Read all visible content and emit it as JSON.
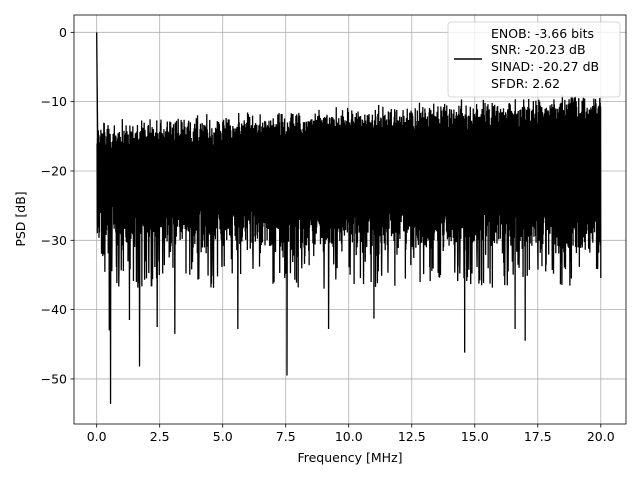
{
  "chart_data": {
    "type": "line",
    "title": "",
    "xlabel": "Frequency [MHz]",
    "ylabel": "PSD [dB]",
    "xlim": [
      -0.9,
      21.0
    ],
    "ylim": [
      -56.5,
      2.5
    ],
    "xticks": [
      0.0,
      2.5,
      5.0,
      7.5,
      10.0,
      12.5,
      15.0,
      17.5,
      20.0
    ],
    "xtick_labels": [
      "0.0",
      "2.5",
      "5.0",
      "7.5",
      "10.0",
      "12.5",
      "15.0",
      "17.5",
      "20.0"
    ],
    "yticks": [
      0,
      -10,
      -20,
      -30,
      -40,
      -50
    ],
    "ytick_labels": [
      "0",
      "−10",
      "−20",
      "−30",
      "−40",
      "−50"
    ],
    "grid": true,
    "legend": {
      "placement": "upper-right",
      "lines": [
        "ENOB: -3.66 bits",
        "SNR: -20.23 dB",
        "SINAD: -20.27 dB",
        "SFDR: 2.62"
      ]
    },
    "series": [
      {
        "color": "#000000",
        "x_range_mhz": [
          0.0,
          20.0
        ],
        "peak": {
          "x": 0.0,
          "y": 0.0
        },
        "noise_band_db": {
          "min": -37,
          "max": -10
        },
        "notable_minima": [
          {
            "x": 0.55,
            "y": -53.6
          },
          {
            "x": 0.5,
            "y": -43.0
          },
          {
            "x": 1.3,
            "y": -41.5
          },
          {
            "x": 1.7,
            "y": -48.2
          },
          {
            "x": 2.4,
            "y": -42.5
          },
          {
            "x": 3.1,
            "y": -43.5
          },
          {
            "x": 5.6,
            "y": -42.8
          },
          {
            "x": 7.55,
            "y": -49.5
          },
          {
            "x": 9.2,
            "y": -42.8
          },
          {
            "x": 11.0,
            "y": -41.3
          },
          {
            "x": 14.6,
            "y": -46.2
          },
          {
            "x": 16.6,
            "y": -42.8
          },
          {
            "x": 17.0,
            "y": -44.5
          }
        ]
      }
    ]
  }
}
